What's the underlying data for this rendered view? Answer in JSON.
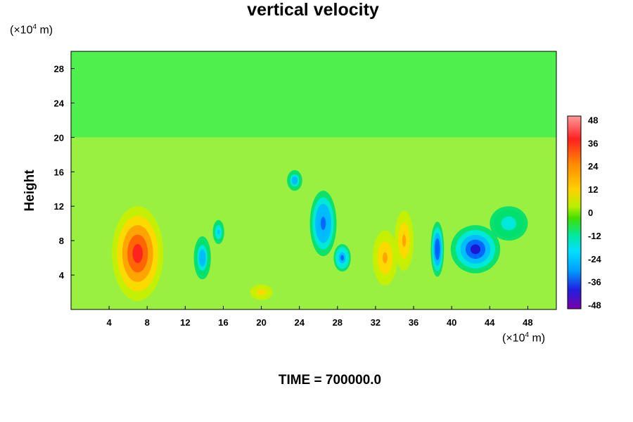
{
  "chart_data": {
    "type": "heatmap",
    "title": "vertical velocity",
    "ylabel": "Height",
    "x_unit": "(×10⁴ m)",
    "y_unit": "(×10⁴ m)",
    "footer": "TIME = 700000.0",
    "xlim": [
      0,
      51
    ],
    "ylim": [
      0,
      30
    ],
    "x_ticks": [
      4,
      8,
      12,
      16,
      20,
      24,
      28,
      32,
      36,
      40,
      44,
      48
    ],
    "y_ticks": [
      4,
      8,
      12,
      16,
      20,
      24,
      28
    ],
    "colorbar": {
      "range": [
        -50,
        50
      ],
      "ticks": [
        48,
        36,
        24,
        12,
        0,
        -12,
        -24,
        -36,
        -48
      ]
    },
    "features": [
      {
        "x": 7,
        "y": 6.5,
        "rx": 2.7,
        "ry": 5.5,
        "value": 48
      },
      {
        "x": 13.8,
        "y": 6,
        "rx": 0.9,
        "ry": 2.5,
        "value": -30
      },
      {
        "x": 15.5,
        "y": 9,
        "rx": 0.6,
        "ry": 1.4,
        "value": -28
      },
      {
        "x": 20,
        "y": 2,
        "rx": 1.2,
        "ry": 0.9,
        "value": 22
      },
      {
        "x": 23.5,
        "y": 15,
        "rx": 0.8,
        "ry": 1.2,
        "value": -32
      },
      {
        "x": 26.5,
        "y": 10,
        "rx": 1.4,
        "ry": 3.8,
        "value": -40
      },
      {
        "x": 28.5,
        "y": 6,
        "rx": 0.9,
        "ry": 1.6,
        "value": -36
      },
      {
        "x": 33,
        "y": 6,
        "rx": 1.3,
        "ry": 3.2,
        "value": 28
      },
      {
        "x": 35,
        "y": 8,
        "rx": 1.0,
        "ry": 3.5,
        "value": 26
      },
      {
        "x": 38.5,
        "y": 7,
        "rx": 0.7,
        "ry": 3.2,
        "value": -42
      },
      {
        "x": 42.5,
        "y": 7,
        "rx": 2.6,
        "ry": 2.8,
        "value": -44
      },
      {
        "x": 46,
        "y": 10,
        "rx": 2.0,
        "ry": 2.0,
        "value": -22
      }
    ]
  }
}
